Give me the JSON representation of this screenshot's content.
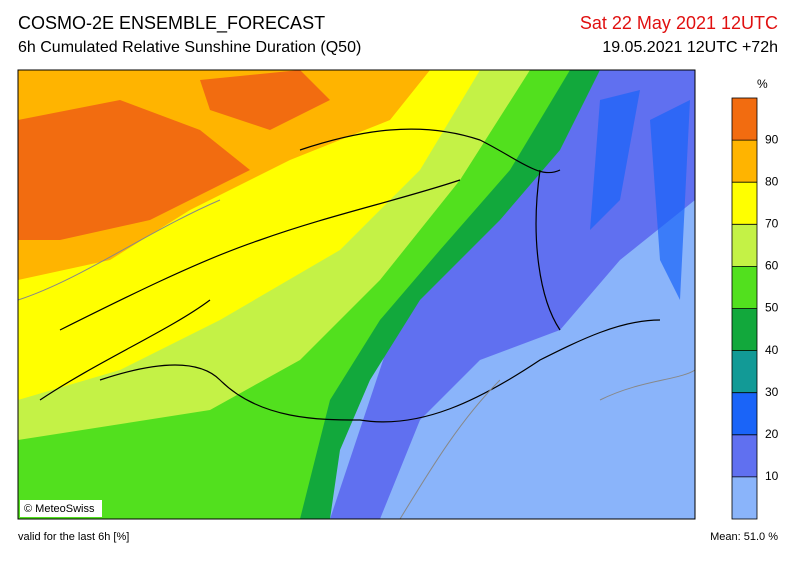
{
  "header": {
    "title": "COSMO-2E ENSEMBLE_FORECAST",
    "subtitle": "6h Cumulated Relative Sunshine Duration (Q50)",
    "valid_date": "Sat 22 May 2021 12UTC",
    "run": "19.05.2021 12UTC +72h"
  },
  "credit": "© MeteoSwiss",
  "colorbar": {
    "unit": "%",
    "lim": [
      0,
      100
    ],
    "ticks": [
      10,
      20,
      30,
      40,
      50,
      60,
      70,
      80,
      90
    ],
    "colors": [
      "#8ab4fa",
      "#6070f0",
      "#1a64f8",
      "#129a96",
      "#12a83c",
      "#52e01e",
      "#c4f246",
      "#ffff00",
      "#ffb400",
      "#f26c10"
    ]
  },
  "footer": {
    "validity": "valid for the last 6h [%]",
    "mean": "Mean:  51.0 %"
  }
}
